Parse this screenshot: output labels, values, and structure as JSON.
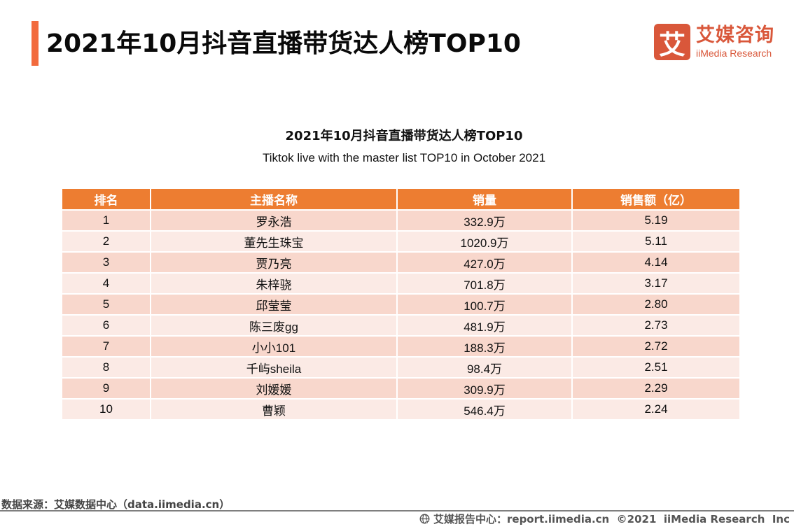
{
  "header": {
    "title": "2021年10月抖音直播带货达人榜TOP10",
    "accent_color": "#f26a3d"
  },
  "logo": {
    "mark": "艾",
    "cn": "艾媒咨询",
    "en": "iiMedia Research",
    "color": "#d9573a"
  },
  "table_title": {
    "cn": "2021年10月抖音直播带货达人榜TOP10",
    "en": "Tiktok live with the master list TOP10 in October 2021"
  },
  "table": {
    "header_color": "#ed7d31",
    "columns": [
      "排名",
      "主播名称",
      "销量",
      "销售额（亿）"
    ],
    "rows": [
      {
        "rank": "1",
        "name": "罗永浩",
        "sales_volume": "332.9万",
        "revenue": "5.19"
      },
      {
        "rank": "2",
        "name": "董先生珠宝",
        "sales_volume": "1020.9万",
        "revenue": "5.11"
      },
      {
        "rank": "3",
        "name": "贾乃亮",
        "sales_volume": "427.0万",
        "revenue": "4.14"
      },
      {
        "rank": "4",
        "name": "朱梓骁",
        "sales_volume": "701.8万",
        "revenue": "3.17"
      },
      {
        "rank": "5",
        "name": "邱莹莹",
        "sales_volume": "100.7万",
        "revenue": "2.80"
      },
      {
        "rank": "6",
        "name": "陈三废gg",
        "sales_volume": "481.9万",
        "revenue": "2.73"
      },
      {
        "rank": "7",
        "name": "小小101",
        "sales_volume": "188.3万",
        "revenue": "2.72"
      },
      {
        "rank": "8",
        "name": "千屿sheila",
        "sales_volume": "98.4万",
        "revenue": "2.51"
      },
      {
        "rank": "9",
        "name": "刘媛媛",
        "sales_volume": "309.9万",
        "revenue": "2.29"
      },
      {
        "rank": "10",
        "name": "曹颖",
        "sales_volume": "546.4万",
        "revenue": "2.24"
      }
    ]
  },
  "footer": {
    "source": "数据来源：艾媒数据中心（data.iimedia.cn）",
    "report_icon": "globe-cursor-icon",
    "report": "艾媒报告中心：report.iimedia.cn  ©2021  iiMedia Research  Inc"
  }
}
